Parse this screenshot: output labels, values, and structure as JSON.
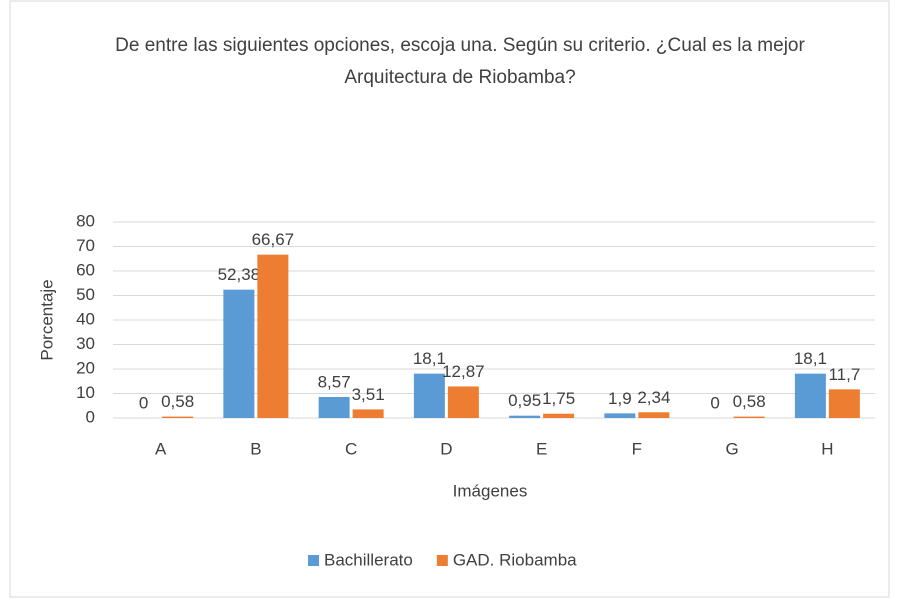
{
  "chart_data": {
    "type": "bar",
    "title": "De entre las siguientes opciones, escoja una. Según su criterio. ¿Cual es la mejor Arquitectura de Riobamba?",
    "x_label": "Imágenes",
    "y_label": "Porcentaje",
    "categories": [
      "A",
      "B",
      "C",
      "D",
      "E",
      "F",
      "G",
      "H"
    ],
    "series": [
      {
        "name": "Bachillerato",
        "color": "#5b9bd5",
        "values": [
          0,
          52.38,
          8.57,
          18.1,
          0.95,
          1.9,
          0,
          18.1
        ],
        "value_labels": [
          "0",
          "52,38",
          "8,57",
          "18,1",
          "0,95",
          "1,9",
          "0",
          "18,1"
        ]
      },
      {
        "name": "GAD. Riobamba",
        "color": "#ed7d31",
        "values": [
          0.58,
          66.67,
          3.51,
          12.87,
          1.75,
          2.34,
          0.58,
          11.7
        ],
        "value_labels": [
          "0,58",
          "66,67",
          "3,51",
          "12,87",
          "1,75",
          "2,34",
          "0,58",
          "11,7"
        ]
      }
    ],
    "ylim": [
      0,
      80
    ],
    "yticks": [
      0,
      10,
      20,
      30,
      40,
      50,
      60,
      70,
      80
    ],
    "grid": true,
    "legend": "bottom"
  }
}
